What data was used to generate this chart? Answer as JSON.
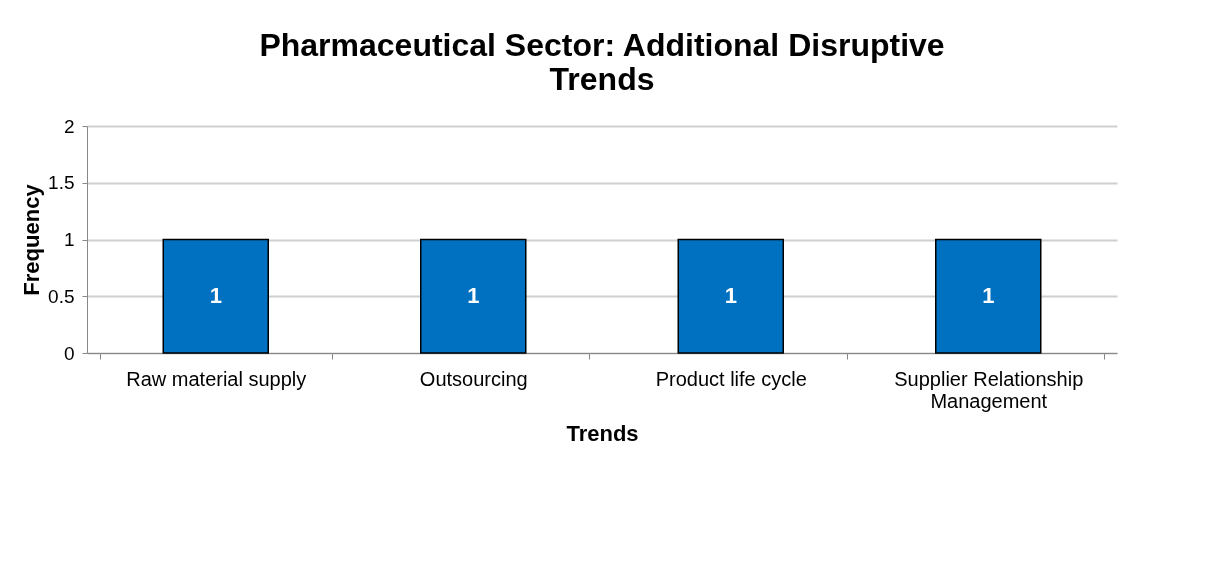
{
  "chart_data": {
    "type": "bar",
    "title": "Pharmaceutical Sector: Additional Disruptive Trends",
    "xlabel": "Trends",
    "ylabel": "Frequency",
    "categories": [
      "Raw material supply",
      "Outsourcing",
      "Product life cycle",
      "Supplier Relationship Management"
    ],
    "values": [
      1,
      1,
      1,
      1
    ],
    "color": "#0070c0",
    "ylim": [
      0,
      2
    ],
    "yticks": [
      0,
      0.5,
      1,
      1.5,
      2
    ],
    "grid": "y",
    "data_labels": true
  }
}
